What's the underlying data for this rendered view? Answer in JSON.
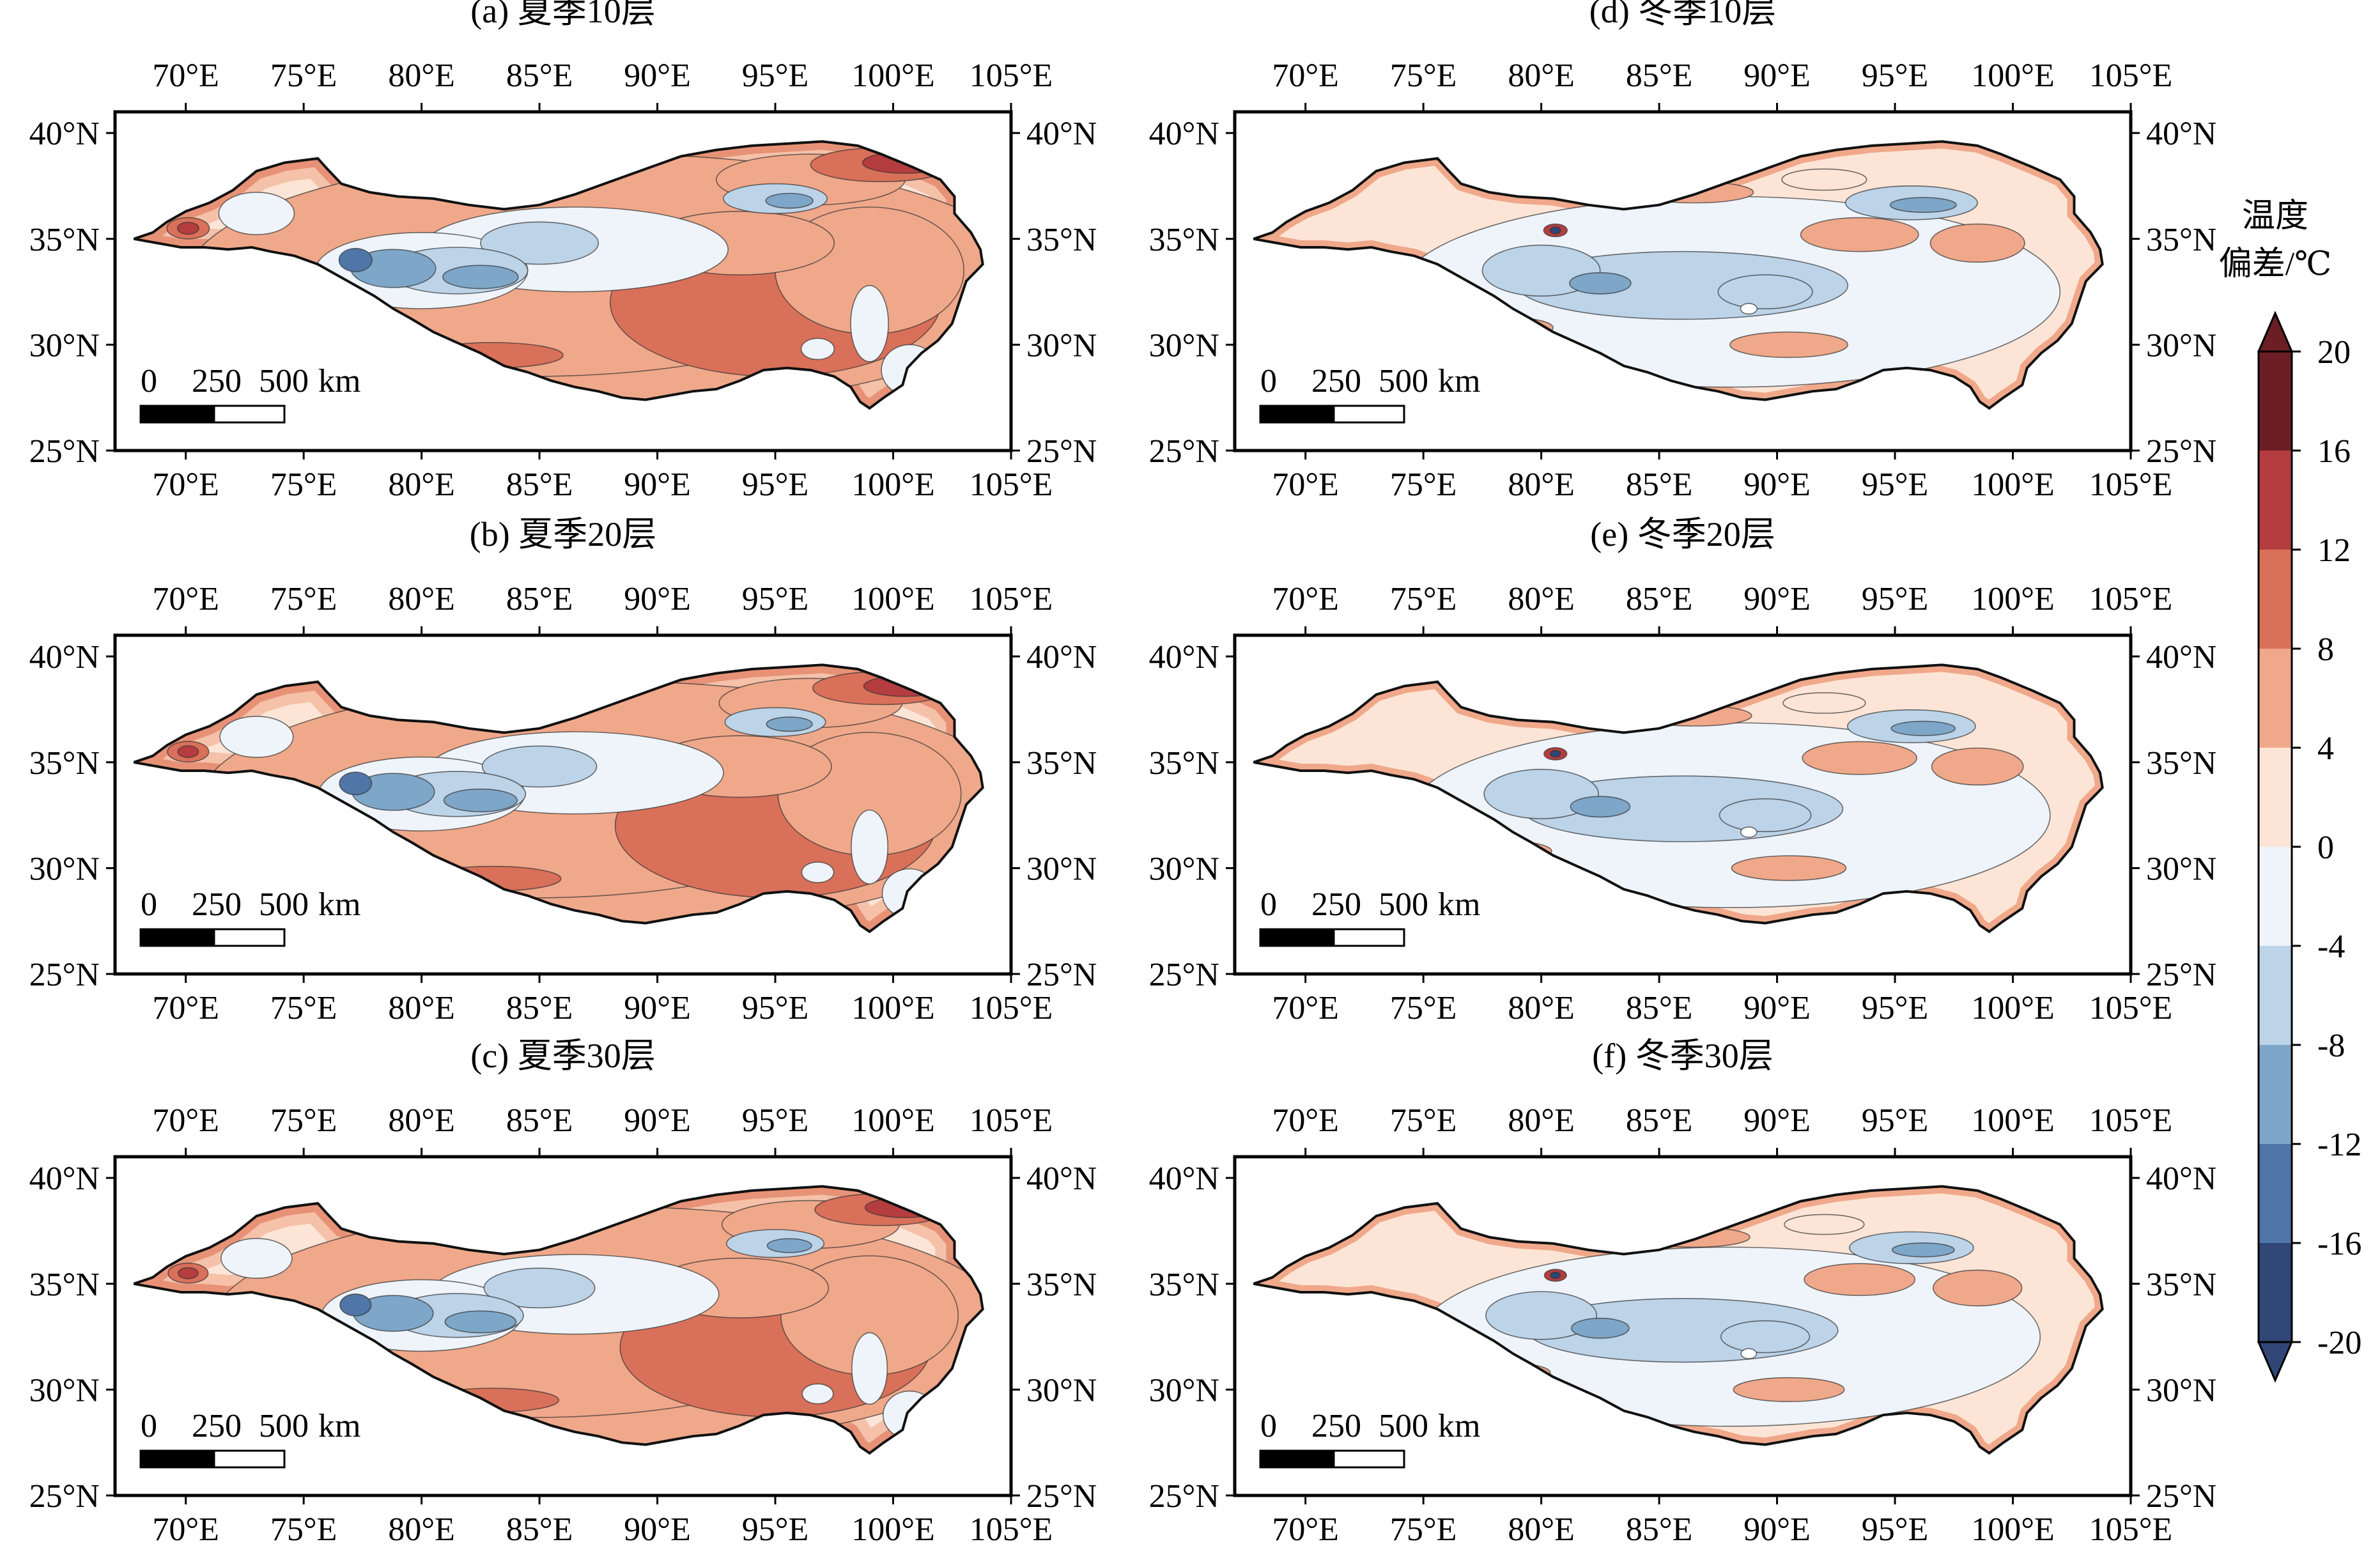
{
  "figure": {
    "panels": [
      {
        "title": "(a) 夏季10层",
        "season": "summer"
      },
      {
        "title": "(b) 夏季20层",
        "season": "summer"
      },
      {
        "title": "(c) 夏季30层",
        "season": "summer"
      },
      {
        "title": "(d) 冬季10层",
        "season": "winter"
      },
      {
        "title": "(e) 冬季20层",
        "season": "winter"
      },
      {
        "title": "(f) 冬季30层",
        "season": "winter"
      }
    ],
    "lon_labels": [
      "70°E",
      "75°E",
      "80°E",
      "85°E",
      "90°E",
      "95°E",
      "100°E",
      "105°E"
    ],
    "lat_labels": [
      "40°N",
      "35°N",
      "30°N",
      "25°N"
    ],
    "scale_bar": {
      "labels": [
        "0",
        "250",
        "500",
        "km"
      ]
    },
    "colorbar": {
      "title_line1": "温度",
      "title_line2": "偏差/℃",
      "tick_labels": [
        "20",
        "16",
        "12",
        "8",
        "4",
        "0",
        "-4",
        "-8",
        "-12",
        "-16",
        "-20"
      ],
      "colors": [
        "#6b1e24",
        "#b53d3f",
        "#d9705a",
        "#f0a88a",
        "#fce5d6",
        "#eef4fa",
        "#bcd3e8",
        "#7ea6c8",
        "#4f76a6",
        "#2f4677"
      ]
    }
  }
}
